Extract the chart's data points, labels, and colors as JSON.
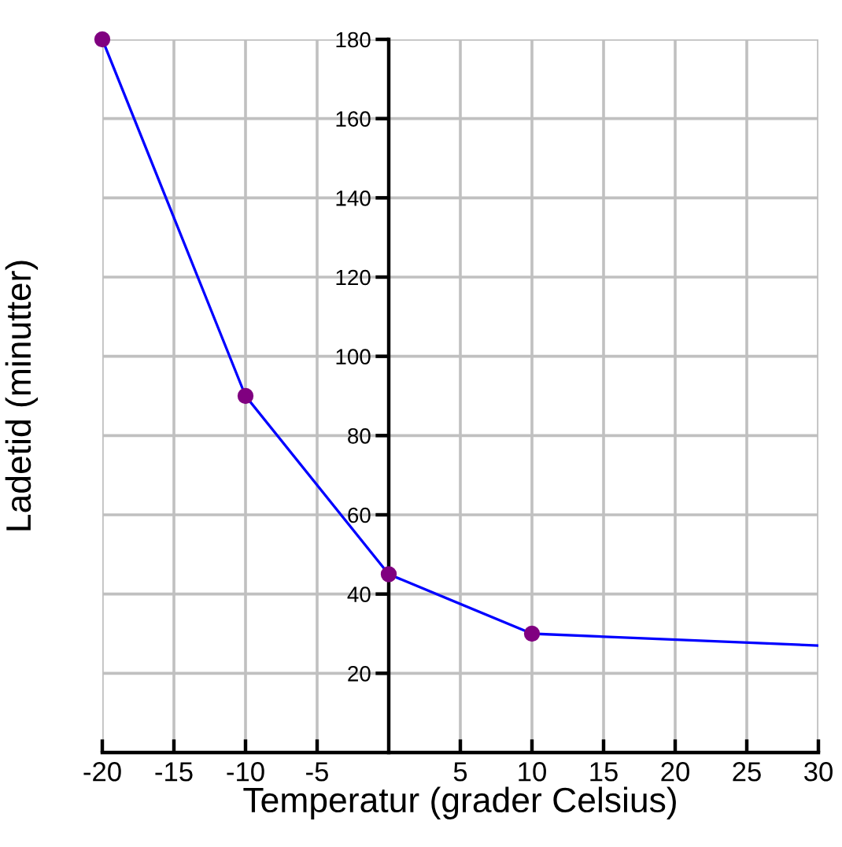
{
  "chart_data": {
    "type": "line",
    "xlabel": "Temperatur (grader Celsius)",
    "ylabel": "Ladetid (minutter)",
    "series": [
      {
        "color": "#0000ff",
        "x": [
          -20,
          -10,
          0,
          10,
          30
        ],
        "values": [
          180,
          90,
          45,
          30,
          27
        ],
        "marker": "none"
      },
      {
        "type": "scatter",
        "color": "#800080",
        "x": [
          -20,
          -10,
          0,
          10
        ],
        "values": [
          180,
          90,
          45,
          30
        ],
        "marker": "circle"
      }
    ],
    "xlim": [
      -20,
      30
    ],
    "xticks": [
      -20,
      -15,
      -10,
      -5,
      5,
      10,
      15,
      20,
      25,
      30
    ],
    "ylim": [
      0,
      180
    ],
    "yticks": [
      20,
      40,
      60,
      80,
      100,
      120,
      140,
      160,
      180
    ],
    "grid": true
  }
}
